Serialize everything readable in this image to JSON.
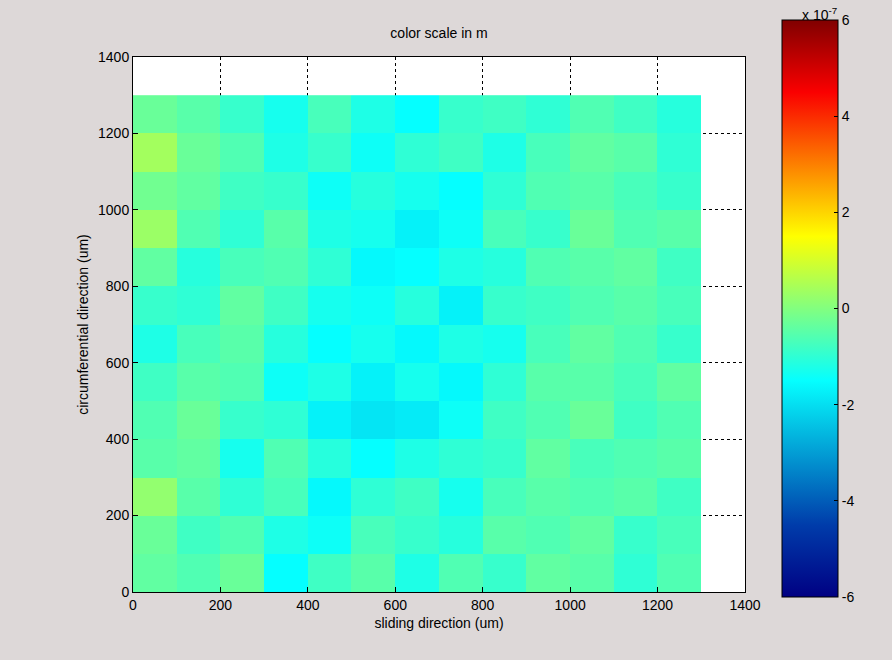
{
  "chart_data": {
    "type": "heatmap",
    "title": "color scale in m",
    "x_label": "sliding direction (um)",
    "y_label": "circumferential direction (um)",
    "x": [
      50,
      150,
      250,
      350,
      450,
      550,
      650,
      750,
      850,
      950,
      1050,
      1150,
      1250
    ],
    "y": [
      50,
      150,
      250,
      350,
      450,
      550,
      650,
      750,
      850,
      950,
      1050,
      1150,
      1250
    ],
    "cells": [
      [
        -4e-08,
        -6e-08,
        -3e-08,
        -1.5e-07,
        -8e-08,
        -5e-08,
        -1.2e-07,
        -6e-08,
        -9e-08,
        -4e-08,
        -5e-08,
        -1e-07,
        -6e-08
      ],
      [
        -3e-08,
        -8e-08,
        -6e-08,
        -1.2e-07,
        -1.4e-07,
        -7e-08,
        -9e-08,
        -1.1e-07,
        -5e-08,
        -6e-08,
        -4e-08,
        -9e-08,
        -7e-08
      ],
      [
        2e-08,
        -5e-08,
        -1e-07,
        -7e-08,
        -1.6e-07,
        -1e-07,
        -8e-08,
        -1.3e-07,
        -7e-08,
        -5e-08,
        -6e-08,
        -5e-08,
        -8e-08
      ],
      [
        -5e-08,
        -4e-08,
        -1.3e-07,
        -6e-08,
        -1.1e-07,
        -1.5e-07,
        -1.2e-07,
        -1e-07,
        -9e-08,
        -4e-08,
        -7e-08,
        -6e-08,
        -5e-08
      ],
      [
        -6e-08,
        -3e-08,
        -9e-08,
        -1e-07,
        -1.7e-07,
        -1.9e-07,
        -1.8e-07,
        -1.4e-07,
        -8e-08,
        -6e-08,
        -3e-08,
        -8e-08,
        -6e-08
      ],
      [
        -8e-08,
        -5e-08,
        -6e-08,
        -1.4e-07,
        -1.2e-07,
        -1.7e-07,
        -1.3e-07,
        -1.6e-07,
        -1e-07,
        -5e-08,
        -5e-08,
        -7e-08,
        -4e-08
      ],
      [
        -1.2e-07,
        -7e-08,
        -5e-08,
        -1.1e-07,
        -1.5e-07,
        -1.3e-07,
        -1.6e-07,
        -1.2e-07,
        -1.3e-07,
        -7e-08,
        -4e-08,
        -6e-08,
        -9e-08
      ],
      [
        -9e-08,
        -1e-07,
        -4e-08,
        -8e-08,
        -1.3e-07,
        -1.4e-07,
        -1.1e-07,
        -1.7e-07,
        -9e-08,
        -8e-08,
        -6e-08,
        -5e-08,
        -7e-08
      ],
      [
        -4e-08,
        -1.1e-07,
        -7e-08,
        -6e-08,
        -1e-07,
        -1.6e-07,
        -1.5e-07,
        -1.2e-07,
        -1.1e-07,
        -6e-08,
        -5e-08,
        -4e-08,
        -8e-08
      ],
      [
        3e-08,
        -6e-08,
        -1e-07,
        -5e-08,
        -1.2e-07,
        -1.3e-07,
        -1.7e-07,
        -1.4e-07,
        -7e-08,
        -9e-08,
        -3e-08,
        -6e-08,
        -5e-08
      ],
      [
        -2e-08,
        -4e-08,
        -8e-08,
        -9e-08,
        -1.4e-07,
        -1.1e-07,
        -1.3e-07,
        -1.5e-07,
        -1e-07,
        -6e-08,
        -5e-08,
        -7e-08,
        -9e-08
      ],
      [
        4e-08,
        -3e-08,
        -6e-08,
        -1.2e-07,
        -9e-08,
        -1.4e-07,
        -1e-07,
        -8e-08,
        -1.2e-07,
        -7e-08,
        -4e-08,
        -5e-08,
        -1e-07
      ],
      [
        -3e-08,
        -5e-08,
        -9e-08,
        -1.3e-07,
        -7e-08,
        -1.2e-07,
        -1.5e-07,
        -9e-08,
        -8e-08,
        -1e-07,
        -6e-08,
        -8e-08,
        -1.1e-07
      ]
    ],
    "color": "Jet",
    "xlim": [
      0,
      1400
    ],
    "ylim": [
      0,
      1400
    ],
    "xticks": [
      0,
      200,
      400,
      600,
      800,
      1000,
      1200,
      1400
    ],
    "yticks": [
      0,
      200,
      400,
      600,
      800,
      1000,
      1200,
      1400
    ],
    "grid": true,
    "colorbar_range": [
      -6e-07,
      6e-07
    ],
    "colorbar_ticks": [
      {
        "value": -6e-07,
        "label": "-6"
      },
      {
        "value": -4e-07,
        "label": "-4"
      },
      {
        "value": -2e-07,
        "label": "-2"
      },
      {
        "value": 0,
        "label": "0"
      },
      {
        "value": 2e-07,
        "label": "2"
      },
      {
        "value": 4e-07,
        "label": "4"
      },
      {
        "value": 6e-07,
        "label": "6"
      }
    ],
    "colorbar_multiplier": "x 10",
    "colorbar_exponent": "-7"
  }
}
